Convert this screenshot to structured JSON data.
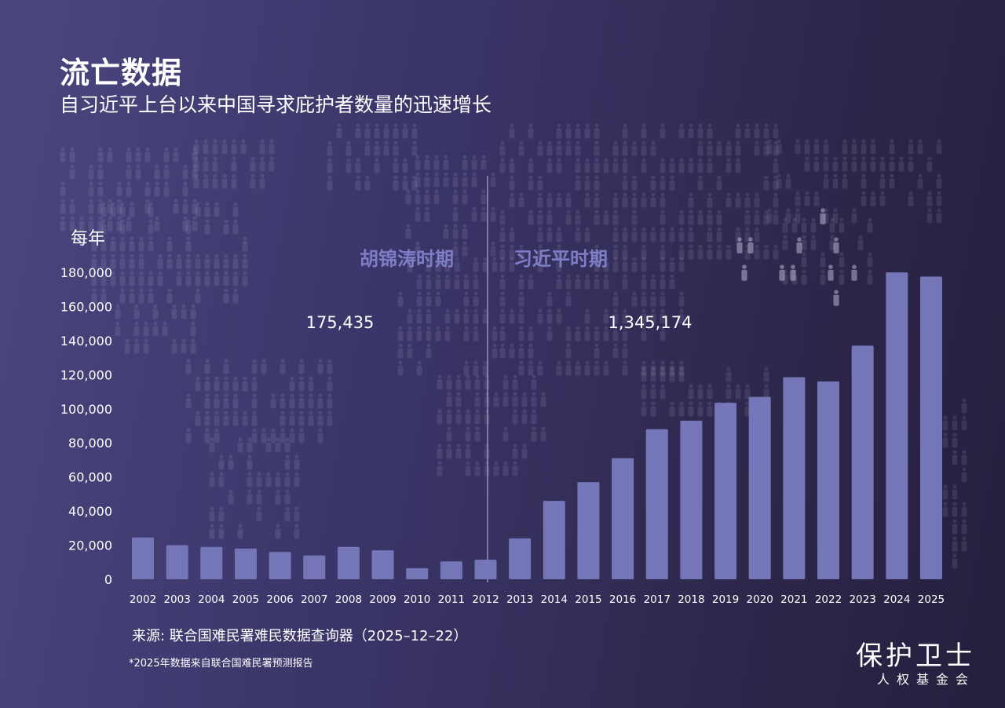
{
  "header": {
    "title": "流亡数据",
    "subtitle": "自习近平上台以来中国寻求庇护者数量的迅速增长"
  },
  "chart_data": {
    "type": "bar",
    "ylabel": "每年",
    "ylim": [
      0,
      180000
    ],
    "yticks": [
      0,
      20000,
      40000,
      60000,
      80000,
      100000,
      120000,
      140000,
      160000,
      180000
    ],
    "ytick_labels": [
      "0",
      "20,000",
      "40,000",
      "60,000",
      "80,000",
      "100,000",
      "120,000",
      "140,000",
      "160,000",
      "180,000"
    ],
    "categories": [
      "2002",
      "2003",
      "2004",
      "2005",
      "2006",
      "2007",
      "2008",
      "2009",
      "2010",
      "2011",
      "2012",
      "2013",
      "2014",
      "2015",
      "2016",
      "2017",
      "2018",
      "2019",
      "2020",
      "2021",
      "2022",
      "2023",
      "2024",
      "2025"
    ],
    "values": [
      24500,
      20000,
      19000,
      18000,
      16000,
      14000,
      19000,
      17000,
      6500,
      10500,
      11500,
      24000,
      46000,
      57000,
      71000,
      88000,
      93000,
      103500,
      107000,
      118500,
      116000,
      137000,
      180000,
      177500
    ],
    "bar_color": "#7476b8",
    "divider_after": "2011",
    "eras": [
      {
        "label": "胡锦涛时期",
        "total": "175,435"
      },
      {
        "label": "习近平时期",
        "total": "1,345,174"
      }
    ],
    "grid": false
  },
  "footer": {
    "source": "来源: 联合国难民署难民数据查询器（2025–12–22）",
    "footnote": "*2025年数据来自联合国难民署预测报告",
    "logo_main": "保护卫士",
    "logo_sub": "人权基金会"
  }
}
